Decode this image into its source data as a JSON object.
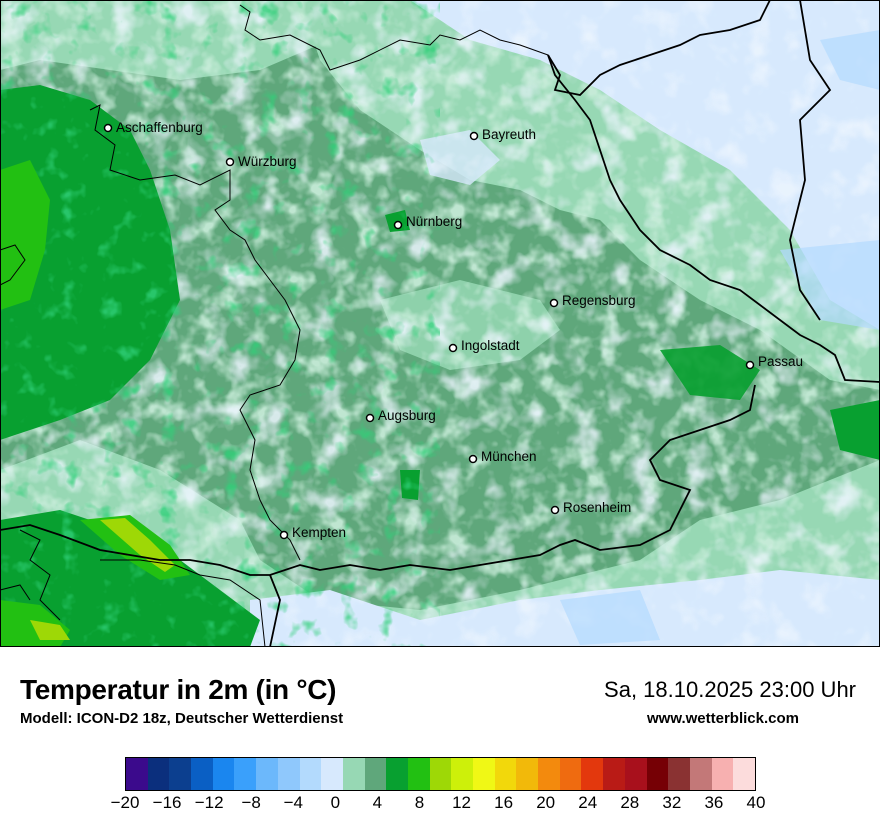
{
  "map": {
    "base_color": "#5fa77b",
    "cities": [
      {
        "name": "Aschaffenburg",
        "id": "aschaffenburg"
      },
      {
        "name": "Würzburg",
        "id": "wuerzburg"
      },
      {
        "name": "Bayreuth",
        "id": "bayreuth"
      },
      {
        "name": "Nürnberg",
        "id": "nuernberg"
      },
      {
        "name": "Regensburg",
        "id": "regensburg"
      },
      {
        "name": "Ingolstadt",
        "id": "ingolstadt"
      },
      {
        "name": "Passau",
        "id": "passau"
      },
      {
        "name": "Augsburg",
        "id": "augsburg"
      },
      {
        "name": "München",
        "id": "muenchen"
      },
      {
        "name": "Rosenheim",
        "id": "rosenheim"
      },
      {
        "name": "Kempten",
        "id": "kempten"
      }
    ]
  },
  "legend": {
    "title": "Temperatur in 2m (in °C)",
    "subtitle": "Modell: ICON-D2 18z, Deutscher Wetterdienst",
    "datetime": "Sa, 18.10.2025 23:00 Uhr",
    "website": "www.wetterblick.com",
    "ticks": [
      "−20",
      "−16",
      "−12",
      "−8",
      "−4",
      "0",
      "4",
      "8",
      "12",
      "16",
      "20",
      "24",
      "28",
      "32",
      "36",
      "40"
    ],
    "colors": [
      "#3b0a8c",
      "#0b2f7d",
      "#0c3f8f",
      "#0a5fc4",
      "#1a86ef",
      "#3aa0fb",
      "#6cb8fb",
      "#8fc8fc",
      "#b3dafd",
      "#d7e9fd",
      "#97d8b4",
      "#5fa77b",
      "#08a030",
      "#22c012",
      "#9ed806",
      "#cdf00a",
      "#f0f815",
      "#f2d80b",
      "#f2b90a",
      "#f38a0d",
      "#ef6b10",
      "#e3380d",
      "#b91b16",
      "#a8101c",
      "#760005",
      "#8a3232",
      "#c37878",
      "#f7b0b0",
      "#fcdcdc"
    ]
  }
}
